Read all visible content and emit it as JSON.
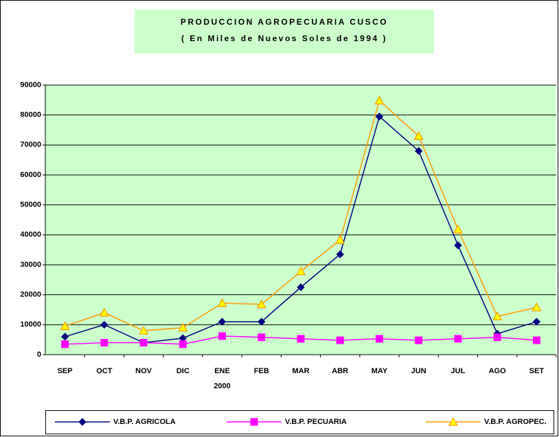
{
  "chart_data": {
    "type": "line",
    "title": "PRODUCCION AGROPECUARIA CUSCO",
    "subtitle": "( En Miles de Nuevos Soles de 1994 )",
    "categories": [
      "SEP",
      "OCT",
      "NOV",
      "DIC",
      "ENE",
      "FEB",
      "MAR",
      "ABR",
      "MAY",
      "JUN",
      "JUL",
      "AGO",
      "SET"
    ],
    "category_years": [
      null,
      null,
      null,
      null,
      "2000",
      null,
      null,
      null,
      null,
      null,
      null,
      null,
      null
    ],
    "series": [
      {
        "name": "V.B.P. AGRICOLA",
        "color": "#000080",
        "marker": "diamond",
        "values": [
          6000,
          10000,
          4000,
          5500,
          11000,
          11000,
          22500,
          33500,
          79500,
          68000,
          36500,
          7000,
          11000
        ]
      },
      {
        "name": "V.B.P. PECUARIA",
        "color": "#ff00ff",
        "marker": "square",
        "values": [
          3500,
          4000,
          4000,
          3500,
          6200,
          5800,
          5300,
          4800,
          5300,
          4800,
          5300,
          5800,
          4800
        ]
      },
      {
        "name": "V.B.P. AGROPEC.",
        "color": "#ff9900",
        "marker": "triangle",
        "values": [
          9500,
          14000,
          8000,
          9000,
          17200,
          16800,
          27800,
          38300,
          84800,
          73000,
          41800,
          12800,
          15800
        ]
      }
    ],
    "ylim": [
      0,
      90000
    ],
    "yticks": [
      0,
      10000,
      20000,
      30000,
      40000,
      50000,
      60000,
      70000,
      80000,
      90000
    ],
    "grid": true,
    "legend": "bottom"
  }
}
